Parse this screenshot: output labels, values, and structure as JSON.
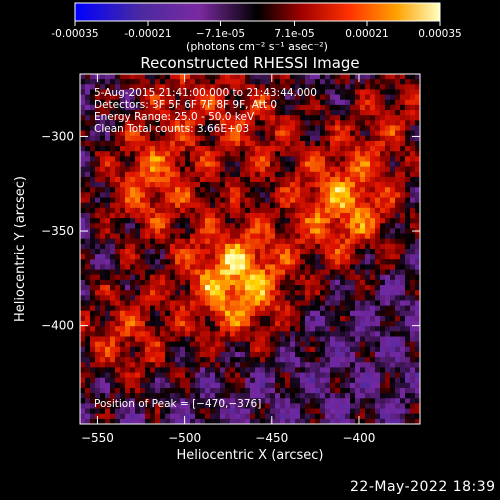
{
  "chart_data": {
    "type": "heatmap",
    "title": "Reconstructed RHESSI Image",
    "xlabel": "Heliocentric X (arcsec)",
    "ylabel": "Heliocentric Y (arcsec)",
    "xlim": [
      -560,
      -365
    ],
    "ylim": [
      -452,
      -267
    ],
    "x_ticks": [
      -550,
      -500,
      -450,
      -400
    ],
    "x_tick_labels": [
      "−550",
      "−500",
      "−450",
      "−400"
    ],
    "y_ticks": [
      -300,
      -350,
      -400
    ],
    "y_tick_labels": [
      "−300",
      "−350",
      "−400"
    ],
    "colorbar": {
      "range": [
        -0.00035,
        0.00035
      ],
      "ticks": [
        -0.00035,
        -0.00021,
        -7.1e-05,
        7.1e-05,
        0.00021,
        0.00035
      ],
      "tick_labels": [
        "-0.00035",
        "-0.00021",
        "−7.1e-05",
        "7.1e-05",
        "0.00021",
        "0.00035"
      ],
      "unit_label": "(photons cm⁻² s⁻¹ asec⁻²)",
      "colormap": [
        "#0000ff",
        "#4b2aa0",
        "#7a2aa0",
        "#000000",
        "#8a0000",
        "#e00000",
        "#ff6a00",
        "#ffd000",
        "#ffffb0"
      ]
    },
    "annotations": [
      "5-Aug-2015 21:41:00.000 to 21:43:44.000",
      "Detectors: 3F 5F 6F 7F 8F 9F, Att 0",
      "Energy Range: 25.0 - 50.0 keV",
      "Clean     Total counts: 3.66E+03"
    ],
    "peak_label": "Position of Peak = [−470,−376]",
    "peak": [
      -470,
      -376
    ],
    "sources": [
      {
        "x": -470,
        "y": -376,
        "peak": 0.00035
      },
      {
        "x": -408,
        "y": -337,
        "peak": 0.00028
      },
      {
        "x": -520,
        "y": -325,
        "peak": 0.00022
      },
      {
        "x": -460,
        "y": -295,
        "peak": 0.00016
      },
      {
        "x": -535,
        "y": -405,
        "peak": 0.00018
      },
      {
        "x": -380,
        "y": -290,
        "peak": 0.00014
      },
      {
        "x": -505,
        "y": -275,
        "peak": 0.00012
      }
    ]
  },
  "footer": {
    "datestamp": "22-May-2022 18:39"
  }
}
